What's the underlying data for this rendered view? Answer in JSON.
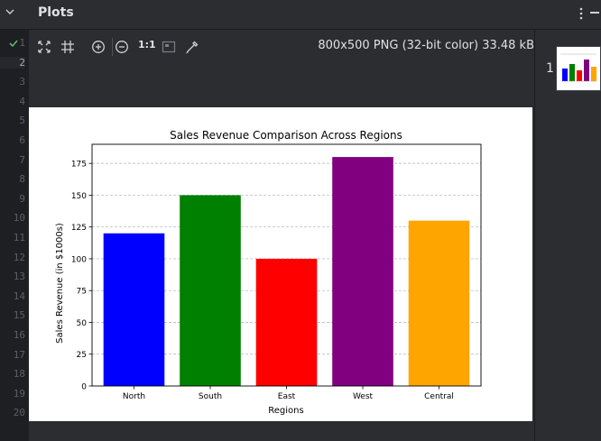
{
  "panel": {
    "title": "Plots"
  },
  "gutter": {
    "lines": [
      "1",
      "2",
      "3",
      "4",
      "5",
      "6",
      "7",
      "8",
      "9",
      "10",
      "11",
      "12",
      "13",
      "14",
      "15",
      "16",
      "17",
      "18",
      "19",
      "20"
    ],
    "current_line": "2"
  },
  "toolbar": {
    "icons": [
      "fit-view-icon",
      "crop-grid-icon",
      "zoom-in-icon",
      "zoom-out-icon",
      "actual-size-icon",
      "background-icon",
      "color-picker-icon"
    ],
    "actual_size_label": "1:1",
    "image_info": "800x500 PNG (32-bit color) 33.48 kB"
  },
  "thumbnails": [
    {
      "number": "1"
    }
  ],
  "colors": {
    "panel_bg": "#2b2d30",
    "editor_bg": "#1e1f22",
    "check": "#5fb865"
  },
  "chart_data": {
    "type": "bar",
    "title": "Sales Revenue Comparison Across Regions",
    "xlabel": "Regions",
    "ylabel": "Sales Revenue (in $1000s)",
    "categories": [
      "North",
      "South",
      "East",
      "West",
      "Central"
    ],
    "values": [
      120,
      150,
      100,
      180,
      130
    ],
    "colors": [
      "#0000ff",
      "#008000",
      "#ff0000",
      "#800080",
      "#ffa500"
    ],
    "ylim": [
      0,
      190
    ],
    "yticks": [
      0,
      25,
      50,
      75,
      100,
      125,
      150,
      175
    ],
    "grid": "y-dashed"
  }
}
